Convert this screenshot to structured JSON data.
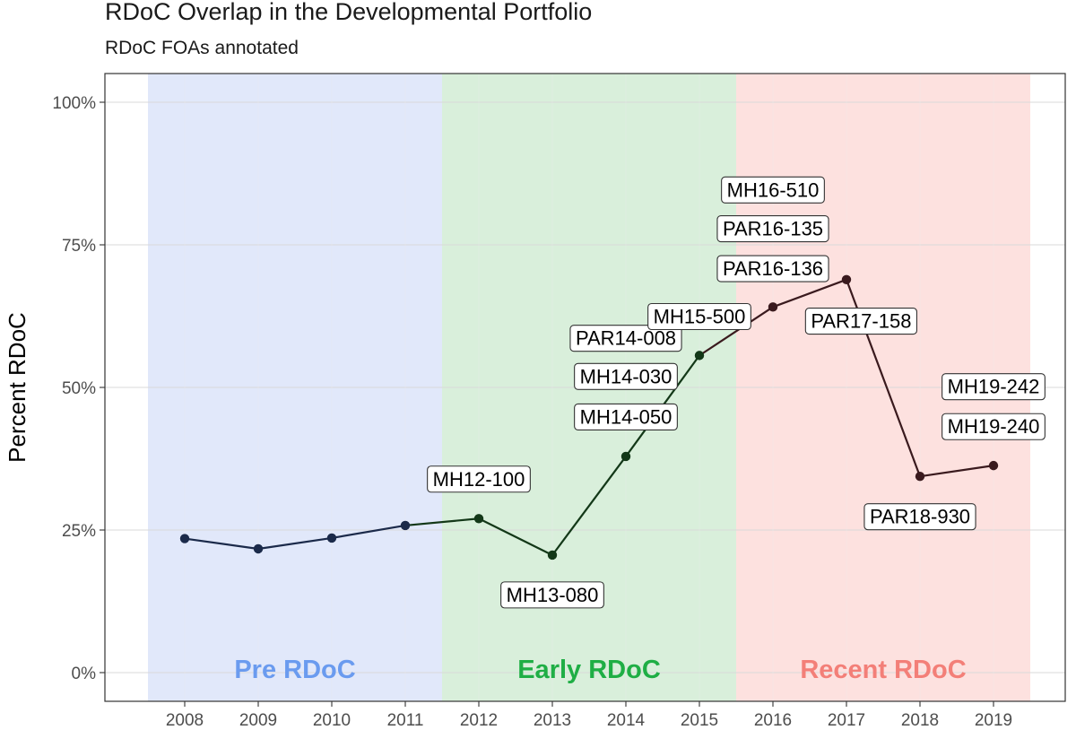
{
  "chart_data": {
    "type": "line",
    "title": "RDoC Overlap in the Developmental Portfolio",
    "subtitle": "RDoC FOAs annotated",
    "ylabel": "Percent RDoC",
    "xlabel": "",
    "ylim": [
      0,
      1
    ],
    "x_ticks": [
      "2008",
      "2009",
      "2010",
      "2011",
      "2012",
      "2013",
      "2014",
      "2015",
      "2016",
      "2017",
      "2018",
      "2019"
    ],
    "y_ticks": [
      "0%",
      "25%",
      "50%",
      "75%",
      "100%"
    ],
    "y_tick_values": [
      0,
      0.25,
      0.5,
      0.75,
      1.0
    ],
    "grid": true,
    "eras": [
      {
        "label": "Pre RDoC",
        "from": 2007.5,
        "to": 2011.5,
        "fill": "#e1e8fa",
        "text_color": "#6a9bef"
      },
      {
        "label": "Early RDoC",
        "from": 2011.5,
        "to": 2015.5,
        "fill": "#d9efdb",
        "text_color": "#1fae45"
      },
      {
        "label": "Recent RDoC",
        "from": 2015.5,
        "to": 2019.5,
        "fill": "#fde1df",
        "text_color": "#f37f78"
      }
    ],
    "points": [
      {
        "x": 2008,
        "y": 0.235,
        "color": "#1b2a4a"
      },
      {
        "x": 2009,
        "y": 0.217,
        "color": "#1b2a4a"
      },
      {
        "x": 2010,
        "y": 0.236,
        "color": "#1b2a4a"
      },
      {
        "x": 2011,
        "y": 0.258,
        "color": "#1b2a4a"
      },
      {
        "x": 2012,
        "y": 0.27,
        "color": "#133818"
      },
      {
        "x": 2013,
        "y": 0.206,
        "color": "#133818"
      },
      {
        "x": 2014,
        "y": 0.379,
        "color": "#133818"
      },
      {
        "x": 2015,
        "y": 0.556,
        "color": "#133818"
      },
      {
        "x": 2016,
        "y": 0.641,
        "color": "#3a1a1e"
      },
      {
        "x": 2017,
        "y": 0.689,
        "color": "#3a1a1e"
      },
      {
        "x": 2018,
        "y": 0.344,
        "color": "#3a1a1e"
      },
      {
        "x": 2019,
        "y": 0.363,
        "color": "#3a1a1e"
      }
    ],
    "annotations": [
      {
        "text": "MH12-100",
        "x": 2012.0,
        "y": 0.34
      },
      {
        "text": "MH13-080",
        "x": 2013.0,
        "y": 0.137
      },
      {
        "text": "MH14-050",
        "x": 2014.0,
        "y": 0.449
      },
      {
        "text": "MH14-030",
        "x": 2014.0,
        "y": 0.52
      },
      {
        "text": "PAR14-008",
        "x": 2014.0,
        "y": 0.587
      },
      {
        "text": "MH15-500",
        "x": 2015.0,
        "y": 0.625
      },
      {
        "text": "MH16-510",
        "x": 2016.0,
        "y": 0.847
      },
      {
        "text": "PAR16-135",
        "x": 2016.0,
        "y": 0.779
      },
      {
        "text": "PAR16-136",
        "x": 2016.0,
        "y": 0.709
      },
      {
        "text": "PAR17-158",
        "x": 2017.2,
        "y": 0.617
      },
      {
        "text": "PAR18-930",
        "x": 2018.0,
        "y": 0.274
      },
      {
        "text": "MH19-240",
        "x": 2019.0,
        "y": 0.432
      },
      {
        "text": "MH19-242",
        "x": 2019.0,
        "y": 0.502
      }
    ]
  }
}
